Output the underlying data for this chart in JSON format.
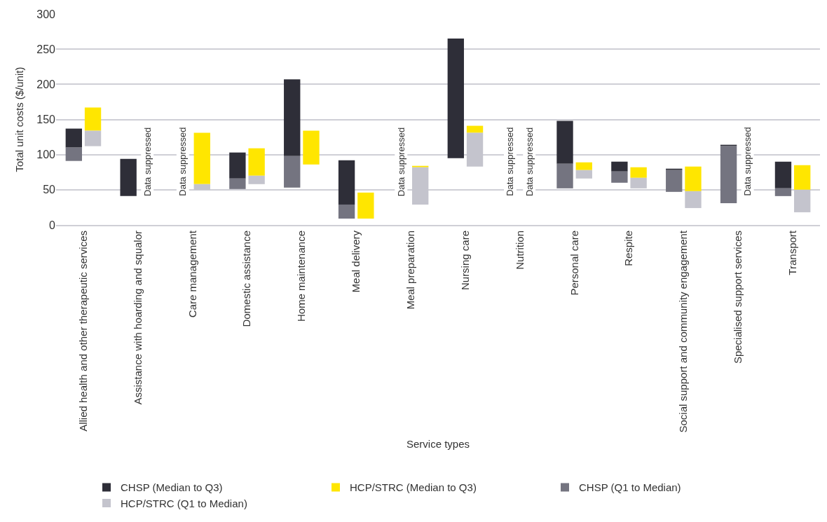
{
  "chart_data": {
    "type": "bar",
    "xlabel": "Service types",
    "ylabel": "Total unit costs ($/unit)",
    "categories": [
      "Allied health and other therapeutic services",
      "Assistance with hoarding and squalor",
      "Care management",
      "Domestic assistance",
      "Home maintenance",
      "Meal delivery",
      "Meal preparation",
      "Nursing care",
      "Nutrition",
      "Personal care",
      "Respite",
      "Social support and community engagement",
      "Specialised support services",
      "Transport"
    ],
    "series": [
      {
        "name": "CHSP (Median to Q3)",
        "color": "#2e2e38",
        "base": [
          110,
          41,
          null,
          66,
          98,
          29,
          null,
          95,
          null,
          87,
          76,
          78,
          112,
          52
        ],
        "values": [
          27,
          53,
          null,
          37,
          109,
          63,
          null,
          170,
          null,
          61,
          14,
          2,
          2,
          38
        ]
      },
      {
        "name": "HCP/STRC (Median to Q3)",
        "color": "#ffe600",
        "base": [
          134,
          null,
          58,
          70,
          86,
          9,
          82,
          131,
          null,
          78,
          67,
          48,
          null,
          50
        ],
        "values": [
          33,
          null,
          73,
          39,
          48,
          37,
          2,
          10,
          null,
          11,
          15,
          35,
          null,
          35
        ]
      },
      {
        "name": "CHSP (Q1 to Median)",
        "color": "#747480",
        "base": [
          91,
          null,
          null,
          51,
          53,
          9,
          null,
          null,
          null,
          52,
          60,
          47,
          31,
          41
        ],
        "values": [
          19,
          null,
          null,
          15,
          45,
          20,
          null,
          null,
          null,
          35,
          16,
          31,
          81,
          11
        ]
      },
      {
        "name": "HCP/STRC (Q1 to Median)",
        "color": "#c4c4cd",
        "base": [
          112,
          null,
          50,
          58,
          null,
          null,
          29,
          83,
          null,
          66,
          52,
          24,
          null,
          18
        ],
        "values": [
          22,
          null,
          8,
          12,
          null,
          null,
          53,
          48,
          null,
          12,
          15,
          24,
          null,
          32
        ]
      }
    ],
    "annotations": [
      "Data suppressed",
      "Data suppressed",
      "Data suppressed",
      "Data suppressed",
      "Data suppressed",
      "Data suppressed"
    ],
    "ylim": [
      0,
      300
    ],
    "yticks": [
      0,
      50,
      100,
      150,
      200,
      250,
      300
    ],
    "grid": "y",
    "legend": "bottom"
  }
}
